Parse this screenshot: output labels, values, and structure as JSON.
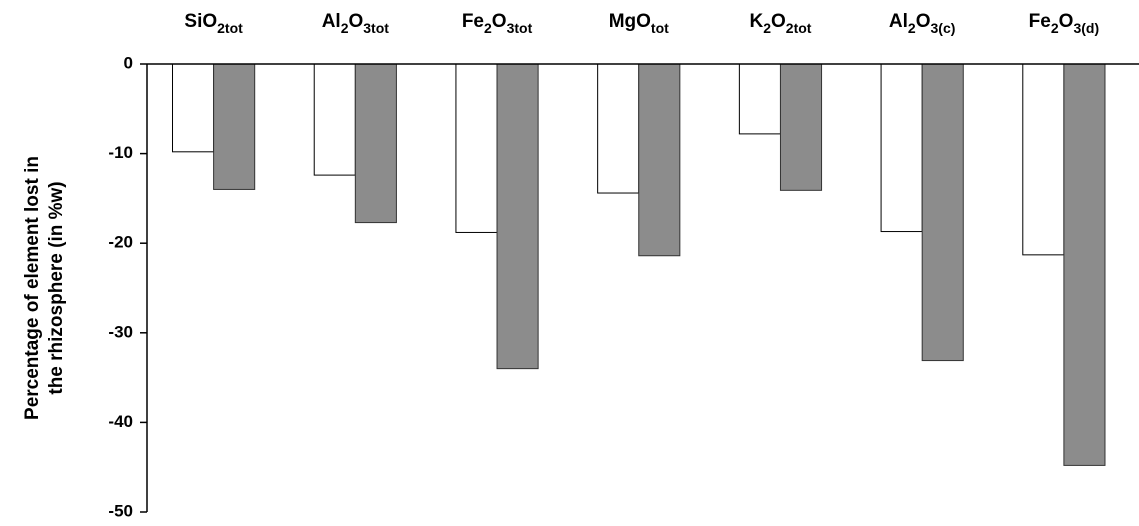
{
  "chart_data": {
    "type": "bar",
    "ylabel": [
      "Percentage of element lost in",
      "the rhizosphere (in %w)"
    ],
    "categories": [
      [
        "SiO",
        "2tot"
      ],
      [
        "Al",
        "2",
        "O",
        "3tot"
      ],
      [
        "Fe",
        "2",
        "O",
        "3tot"
      ],
      [
        "MgO",
        "tot"
      ],
      [
        "K",
        "2",
        "O",
        "2tot"
      ],
      [
        "Al",
        "2",
        "O",
        "3(c)"
      ],
      [
        "Fe",
        "2",
        "O",
        "3(d)"
      ]
    ],
    "series": [
      {
        "color": "#ffffff",
        "values": [
          -9.8,
          -12.4,
          -18.8,
          -14.4,
          -7.8,
          -18.7,
          -21.3
        ]
      },
      {
        "color": "#8c8c8c",
        "values": [
          -14,
          -17.7,
          -34,
          -21.4,
          -14.1,
          -33.1,
          -44.8
        ]
      }
    ],
    "ylim": [
      -50,
      0
    ],
    "yticks": [
      -50,
      -40,
      -30,
      -20,
      -10,
      0
    ]
  }
}
